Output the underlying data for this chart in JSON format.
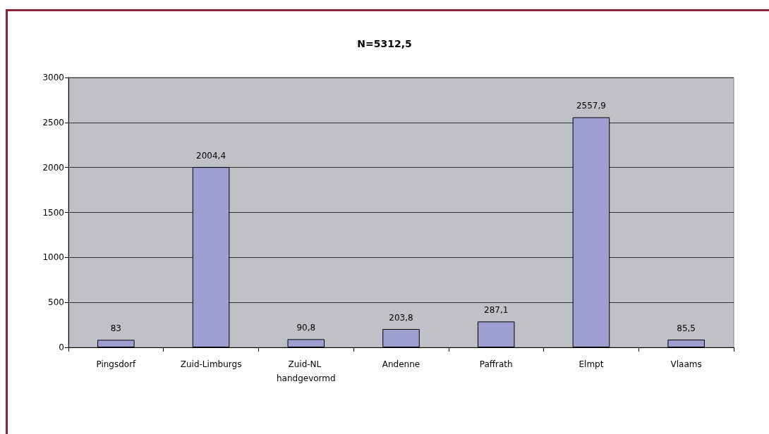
{
  "chart_data": {
    "type": "bar",
    "title": "N=5312,5",
    "categories": [
      "Pingsdorf",
      "Zuid-Limburgs",
      "Zuid-NL handgevormd",
      "Andenne",
      "Paffrath",
      "Elmpt",
      "Vlaams"
    ],
    "values": [
      83,
      2004.4,
      90.8,
      203.8,
      287.1,
      2557.9,
      85.5
    ],
    "value_labels": [
      "83",
      "2004,4",
      "90,8",
      "203,8",
      "287,1",
      "2557,9",
      "85,5"
    ],
    "color": "#9e9fd0",
    "ylim": [
      0,
      3000
    ],
    "yticks": [
      0,
      500,
      1000,
      1500,
      2000,
      2500,
      3000
    ],
    "grid": "y"
  }
}
